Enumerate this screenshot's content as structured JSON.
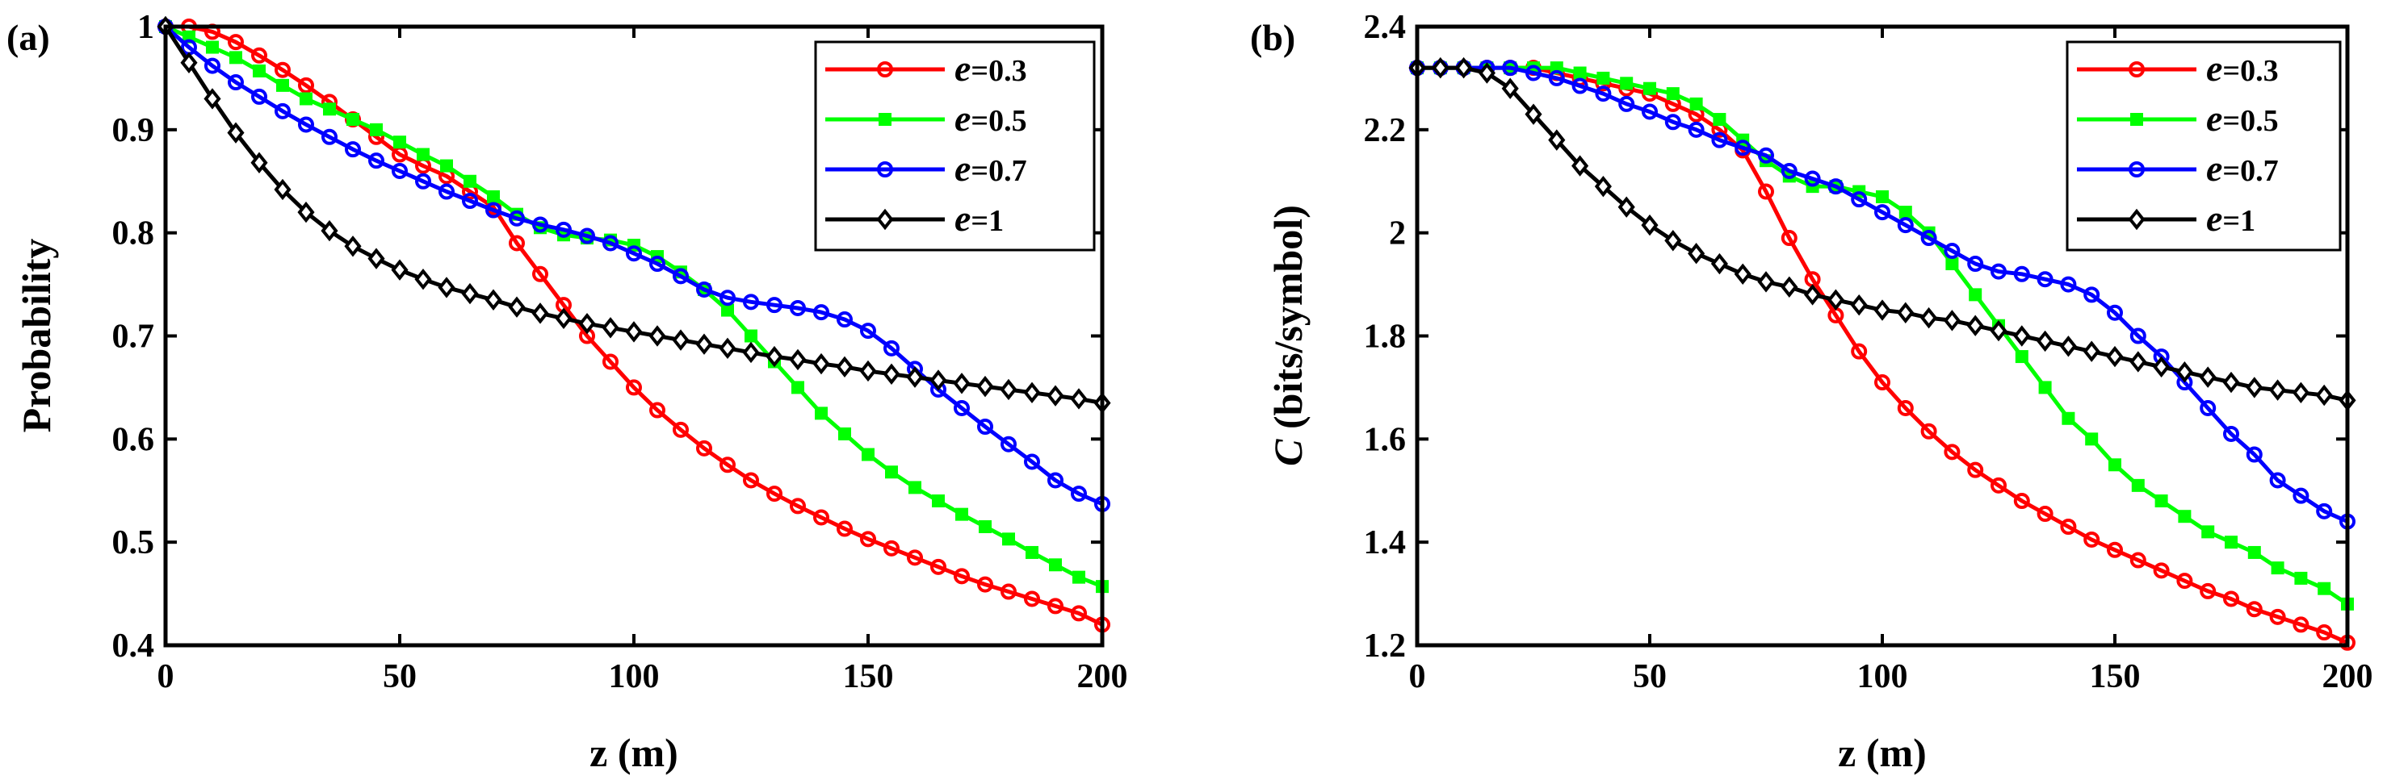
{
  "chart_data": [
    {
      "type": "line",
      "panel_label": "(a)",
      "xlabel": "z (m)",
      "ylabel": "Probability",
      "ylabel_italic": "",
      "ylabel_rest": "Probability",
      "xlim": [
        0,
        200
      ],
      "ylim": [
        0.4,
        1.0
      ],
      "xticks": [
        0,
        50,
        100,
        150,
        200
      ],
      "yticks": [
        0.4,
        0.5,
        0.6,
        0.7,
        0.8,
        0.9,
        1.0
      ],
      "ytick_labels": [
        "0.4",
        "0.5",
        "0.6",
        "0.7",
        "0.8",
        "0.9",
        "1"
      ],
      "xtick_labels": [
        "0",
        "50",
        "100",
        "150",
        "200"
      ],
      "legend_position": "top-right",
      "series": [
        {
          "name": "e=0.3",
          "legend_symbol": "e",
          "legend_value": "=0.3",
          "color": "#ff0000",
          "marker": "circle",
          "x": [
            0,
            5,
            10,
            15,
            20,
            25,
            30,
            35,
            40,
            45,
            50,
            55,
            60,
            65,
            70,
            75,
            80,
            85,
            90,
            95,
            100,
            105,
            110,
            115,
            120,
            125,
            130,
            135,
            140,
            145,
            150,
            155,
            160,
            165,
            170,
            175,
            180,
            185,
            190,
            195,
            200
          ],
          "y": [
            1.0,
            1.0,
            0.995,
            0.985,
            0.972,
            0.958,
            0.943,
            0.927,
            0.91,
            0.893,
            0.876,
            0.865,
            0.855,
            0.84,
            0.825,
            0.79,
            0.76,
            0.73,
            0.7,
            0.675,
            0.65,
            0.628,
            0.609,
            0.591,
            0.575,
            0.56,
            0.547,
            0.535,
            0.524,
            0.513,
            0.503,
            0.494,
            0.485,
            0.476,
            0.467,
            0.459,
            0.452,
            0.445,
            0.438,
            0.431,
            0.42
          ]
        },
        {
          "name": "e=0.5",
          "legend_symbol": "e",
          "legend_value": "=0.5",
          "color": "#00ff00",
          "marker": "square",
          "x": [
            0,
            5,
            10,
            15,
            20,
            25,
            30,
            35,
            40,
            45,
            50,
            55,
            60,
            65,
            70,
            75,
            80,
            85,
            90,
            95,
            100,
            105,
            110,
            115,
            120,
            125,
            130,
            135,
            140,
            145,
            150,
            155,
            160,
            165,
            170,
            175,
            180,
            185,
            190,
            195,
            200
          ],
          "y": [
            1.0,
            0.99,
            0.98,
            0.97,
            0.957,
            0.943,
            0.93,
            0.92,
            0.91,
            0.9,
            0.888,
            0.876,
            0.865,
            0.85,
            0.835,
            0.818,
            0.805,
            0.798,
            0.795,
            0.793,
            0.788,
            0.777,
            0.762,
            0.745,
            0.725,
            0.7,
            0.675,
            0.65,
            0.625,
            0.605,
            0.585,
            0.568,
            0.553,
            0.54,
            0.527,
            0.515,
            0.503,
            0.49,
            0.478,
            0.466,
            0.457
          ]
        },
        {
          "name": "e=0.7",
          "legend_symbol": "e",
          "legend_value": "=0.7",
          "color": "#0000ff",
          "marker": "circle",
          "x": [
            0,
            5,
            10,
            15,
            20,
            25,
            30,
            35,
            40,
            45,
            50,
            55,
            60,
            65,
            70,
            75,
            80,
            85,
            90,
            95,
            100,
            105,
            110,
            115,
            120,
            125,
            130,
            135,
            140,
            145,
            150,
            155,
            160,
            165,
            170,
            175,
            180,
            185,
            190,
            195,
            200
          ],
          "y": [
            1.0,
            0.98,
            0.962,
            0.946,
            0.932,
            0.918,
            0.905,
            0.893,
            0.881,
            0.87,
            0.86,
            0.85,
            0.84,
            0.831,
            0.822,
            0.814,
            0.808,
            0.803,
            0.797,
            0.79,
            0.78,
            0.77,
            0.758,
            0.745,
            0.737,
            0.733,
            0.73,
            0.727,
            0.723,
            0.716,
            0.705,
            0.688,
            0.668,
            0.648,
            0.63,
            0.612,
            0.595,
            0.578,
            0.56,
            0.547,
            0.537
          ]
        },
        {
          "name": "e=1",
          "legend_symbol": "e",
          "legend_value": "=1",
          "color": "#000000",
          "marker": "diamond",
          "x": [
            0,
            5,
            10,
            15,
            20,
            25,
            30,
            35,
            40,
            45,
            50,
            55,
            60,
            65,
            70,
            75,
            80,
            85,
            90,
            95,
            100,
            105,
            110,
            115,
            120,
            125,
            130,
            135,
            140,
            145,
            150,
            155,
            160,
            165,
            170,
            175,
            180,
            185,
            190,
            195,
            200
          ],
          "y": [
            1.0,
            0.965,
            0.93,
            0.897,
            0.868,
            0.842,
            0.82,
            0.802,
            0.787,
            0.775,
            0.764,
            0.755,
            0.747,
            0.741,
            0.735,
            0.728,
            0.722,
            0.717,
            0.712,
            0.708,
            0.704,
            0.7,
            0.696,
            0.692,
            0.688,
            0.684,
            0.68,
            0.677,
            0.673,
            0.67,
            0.666,
            0.663,
            0.66,
            0.657,
            0.654,
            0.651,
            0.648,
            0.645,
            0.642,
            0.639,
            0.635
          ]
        }
      ]
    },
    {
      "type": "line",
      "panel_label": "(b)",
      "xlabel": "z (m)",
      "ylabel": "C (bits/symbol)",
      "ylabel_italic": "C",
      "ylabel_rest": " (bits/symbol)",
      "xlim": [
        0,
        200
      ],
      "ylim": [
        1.2,
        2.4
      ],
      "xticks": [
        0,
        50,
        100,
        150,
        200
      ],
      "yticks": [
        1.2,
        1.4,
        1.6,
        1.8,
        2.0,
        2.2,
        2.4
      ],
      "ytick_labels": [
        "1.2",
        "1.4",
        "1.6",
        "1.8",
        "2",
        "2.2",
        "2.4"
      ],
      "xtick_labels": [
        "0",
        "50",
        "100",
        "150",
        "200"
      ],
      "legend_position": "top-right",
      "series": [
        {
          "name": "e=0.3",
          "legend_symbol": "e",
          "legend_value": "=0.3",
          "color": "#ff0000",
          "marker": "circle",
          "x": [
            0,
            5,
            10,
            15,
            20,
            25,
            30,
            35,
            40,
            45,
            50,
            55,
            60,
            65,
            70,
            75,
            80,
            85,
            90,
            95,
            100,
            105,
            110,
            115,
            120,
            125,
            130,
            135,
            140,
            145,
            150,
            155,
            160,
            165,
            170,
            175,
            180,
            185,
            190,
            195,
            200
          ],
          "y": [
            2.32,
            2.32,
            2.32,
            2.32,
            2.32,
            2.32,
            2.31,
            2.3,
            2.29,
            2.28,
            2.27,
            2.25,
            2.23,
            2.2,
            2.16,
            2.08,
            1.99,
            1.91,
            1.84,
            1.77,
            1.71,
            1.66,
            1.615,
            1.575,
            1.54,
            1.51,
            1.48,
            1.455,
            1.43,
            1.405,
            1.385,
            1.365,
            1.345,
            1.325,
            1.305,
            1.29,
            1.27,
            1.255,
            1.24,
            1.225,
            1.205
          ]
        },
        {
          "name": "e=0.5",
          "legend_symbol": "e",
          "legend_value": "=0.5",
          "color": "#00ff00",
          "marker": "square",
          "x": [
            0,
            5,
            10,
            15,
            20,
            25,
            30,
            35,
            40,
            45,
            50,
            55,
            60,
            65,
            70,
            75,
            80,
            85,
            90,
            95,
            100,
            105,
            110,
            115,
            120,
            125,
            130,
            135,
            140,
            145,
            150,
            155,
            160,
            165,
            170,
            175,
            180,
            185,
            190,
            195,
            200
          ],
          "y": [
            2.32,
            2.32,
            2.32,
            2.32,
            2.32,
            2.32,
            2.32,
            2.31,
            2.3,
            2.29,
            2.28,
            2.27,
            2.25,
            2.22,
            2.18,
            2.14,
            2.11,
            2.09,
            2.09,
            2.08,
            2.07,
            2.04,
            2.0,
            1.94,
            1.88,
            1.82,
            1.76,
            1.7,
            1.64,
            1.6,
            1.55,
            1.51,
            1.48,
            1.45,
            1.42,
            1.4,
            1.38,
            1.35,
            1.33,
            1.31,
            1.28
          ]
        },
        {
          "name": "e=0.7",
          "legend_symbol": "e",
          "legend_value": "=0.7",
          "color": "#0000ff",
          "marker": "circle",
          "x": [
            0,
            5,
            10,
            15,
            20,
            25,
            30,
            35,
            40,
            45,
            50,
            55,
            60,
            65,
            70,
            75,
            80,
            85,
            90,
            95,
            100,
            105,
            110,
            115,
            120,
            125,
            130,
            135,
            140,
            145,
            150,
            155,
            160,
            165,
            170,
            175,
            180,
            185,
            190,
            195,
            200
          ],
          "y": [
            2.32,
            2.32,
            2.32,
            2.32,
            2.32,
            2.31,
            2.3,
            2.285,
            2.27,
            2.25,
            2.235,
            2.215,
            2.2,
            2.18,
            2.165,
            2.15,
            2.12,
            2.105,
            2.09,
            2.065,
            2.04,
            2.015,
            1.99,
            1.965,
            1.94,
            1.925,
            1.92,
            1.91,
            1.9,
            1.88,
            1.845,
            1.8,
            1.76,
            1.71,
            1.66,
            1.61,
            1.57,
            1.52,
            1.49,
            1.46,
            1.44
          ]
        },
        {
          "name": "e=1",
          "legend_symbol": "e",
          "legend_value": "=1",
          "color": "#000000",
          "marker": "diamond",
          "x": [
            0,
            5,
            10,
            15,
            20,
            25,
            30,
            35,
            40,
            45,
            50,
            55,
            60,
            65,
            70,
            75,
            80,
            85,
            90,
            95,
            100,
            105,
            110,
            115,
            120,
            125,
            130,
            135,
            140,
            145,
            150,
            155,
            160,
            165,
            170,
            175,
            180,
            185,
            190,
            195,
            200
          ],
          "y": [
            2.32,
            2.32,
            2.32,
            2.31,
            2.28,
            2.23,
            2.18,
            2.13,
            2.09,
            2.05,
            2.015,
            1.985,
            1.96,
            1.94,
            1.92,
            1.905,
            1.895,
            1.88,
            1.87,
            1.86,
            1.85,
            1.845,
            1.835,
            1.83,
            1.82,
            1.81,
            1.8,
            1.79,
            1.78,
            1.77,
            1.76,
            1.75,
            1.74,
            1.73,
            1.72,
            1.71,
            1.7,
            1.695,
            1.69,
            1.685,
            1.675
          ]
        }
      ]
    }
  ]
}
